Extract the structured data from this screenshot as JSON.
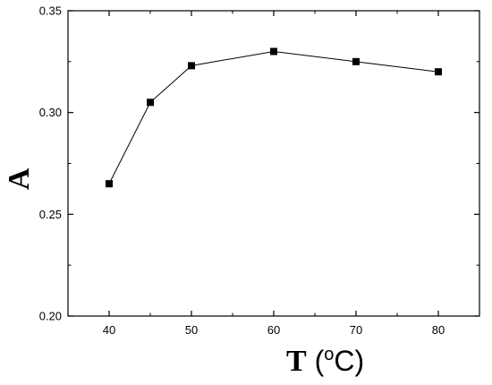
{
  "chart_data": {
    "type": "line",
    "title": "",
    "xlabel": "T (°C)",
    "ylabel": "A",
    "xlim": [
      35,
      85
    ],
    "ylim": [
      0.2,
      0.35
    ],
    "x_ticks": [
      "40",
      "50",
      "60",
      "70",
      "80"
    ],
    "y_ticks": [
      "0.20",
      "0.25",
      "0.30",
      "0.35"
    ],
    "grid": false,
    "legend": "none",
    "marker": "square",
    "color": "#000000",
    "series": [
      {
        "x": [
          40,
          45,
          50,
          60,
          70,
          80
        ],
        "y": [
          0.265,
          0.305,
          0.323,
          0.33,
          0.325,
          0.32
        ]
      }
    ]
  },
  "labels": {
    "y_axis": "A",
    "x_axis_main": "T",
    "x_axis_unit_open": " (",
    "x_axis_unit_degree": "o",
    "x_axis_unit_close": "C)"
  }
}
